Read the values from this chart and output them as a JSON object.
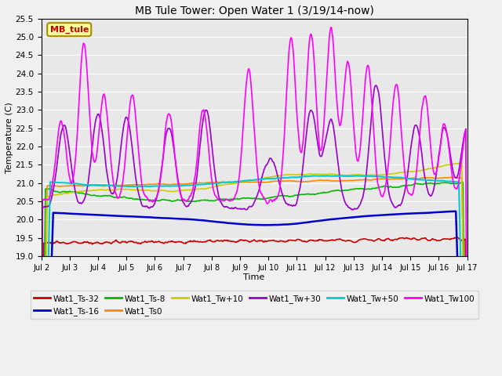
{
  "title": "MB Tule Tower: Open Water 1 (3/19/14-now)",
  "xlabel": "Time",
  "ylabel": "Temperature (C)",
  "ylim": [
    19.0,
    25.5
  ],
  "yticks": [
    19.0,
    19.5,
    20.0,
    20.5,
    21.0,
    21.5,
    22.0,
    22.5,
    23.0,
    23.5,
    24.0,
    24.5,
    25.0,
    25.5
  ],
  "xtick_labels": [
    "Jul 2",
    "Jul 3",
    "Jul 4",
    "Jul 5",
    "Jul 6",
    "Jul 7",
    "Jul 8",
    "Jul 9",
    "Jul 10",
    "Jul 11",
    "Jul 12",
    "Jul 13",
    "Jul 14",
    "Jul 15",
    "Jul 16",
    "Jul 17"
  ],
  "background_color": "#e8e8e8",
  "grid_color": "#ffffff",
  "fig_bg": "#f0f0f0",
  "legend_label": "MB_tule",
  "legend_bg": "#ffff99",
  "legend_border": "#cc0000",
  "series": [
    {
      "label": "Wat1_Ts-32",
      "color": "#cc0000",
      "lw": 1.2
    },
    {
      "label": "Wat1_Ts-16",
      "color": "#0000cc",
      "lw": 1.8
    },
    {
      "label": "Wat1_Ts-8",
      "color": "#00bb00",
      "lw": 1.2
    },
    {
      "label": "Wat1_Ts0",
      "color": "#ff8800",
      "lw": 1.2
    },
    {
      "label": "Wat1_Tw+10",
      "color": "#cccc00",
      "lw": 1.2
    },
    {
      "label": "Wat1_Tw+30",
      "color": "#9900cc",
      "lw": 1.2
    },
    {
      "label": "Wat1_Tw+50",
      "color": "#00cccc",
      "lw": 1.5
    },
    {
      "label": "Wat1_Tw100",
      "color": "#ff00ff",
      "lw": 1.2
    }
  ]
}
